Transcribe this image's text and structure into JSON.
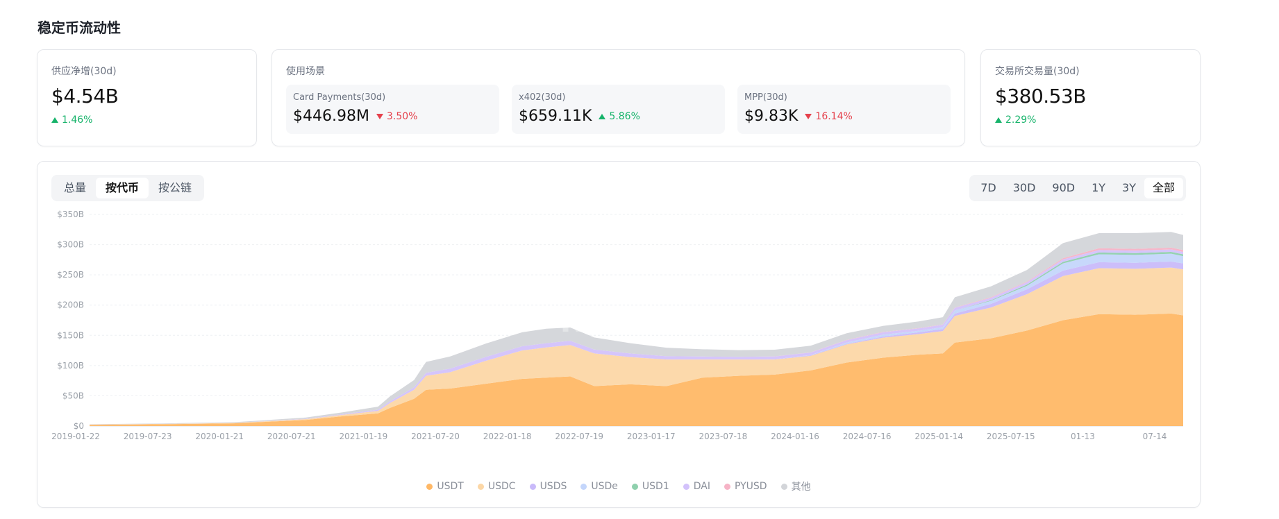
{
  "page": {
    "title": "稳定币流动性"
  },
  "supply_card": {
    "label": "供应净增(30d)",
    "value": "$4.54B",
    "change": "1.46%",
    "direction": "up"
  },
  "usage_card": {
    "label": "使用场景",
    "items": [
      {
        "label": "Card Payments(30d)",
        "value": "$446.98M",
        "change": "3.50%",
        "direction": "down"
      },
      {
        "label": "x402(30d)",
        "value": "$659.11K",
        "change": "5.86%",
        "direction": "up"
      },
      {
        "label": "MPP(30d)",
        "value": "$9.83K",
        "change": "16.14%",
        "direction": "down"
      }
    ]
  },
  "exchange_card": {
    "label": "交易所交易量(30d)",
    "value": "$380.53B",
    "change": "2.29%",
    "direction": "up"
  },
  "view_tabs": [
    "总量",
    "按代币",
    "按公链"
  ],
  "active_view": 1,
  "range_tabs": [
    "7D",
    "30D",
    "90D",
    "1Y",
    "3Y",
    "全部"
  ],
  "active_range": 5,
  "watermark": "ROOTDATA",
  "chart_data": {
    "type": "area",
    "stacked": true,
    "y_ticks": [
      "$0",
      "$50B",
      "$100B",
      "$150B",
      "$200B",
      "$250B",
      "$300B",
      "$350B"
    ],
    "ylim": [
      0,
      350
    ],
    "y_unit": "B USD",
    "x_ticks": [
      "2019-01-22",
      "2019-07-23",
      "2020-01-21",
      "2020-07-21",
      "2021-01-19",
      "2021-07-20",
      "2022-01-18",
      "2022-07-19",
      "2023-01-17",
      "2023-07-18",
      "2024-01-16",
      "2024-07-16",
      "2025-01-14",
      "2025-07-15",
      "01-13",
      "07-14"
    ],
    "grid": true,
    "legend_position": "bottom",
    "x": [
      "2019-01",
      "2019-07",
      "2020-01",
      "2020-07",
      "2020-10",
      "2021-01",
      "2021-02",
      "2021-04",
      "2021-05",
      "2021-07",
      "2021-10",
      "2022-01",
      "2022-03",
      "2022-05",
      "2022-07",
      "2022-10",
      "2023-01",
      "2023-04",
      "2023-07",
      "2023-10",
      "2024-01",
      "2024-04",
      "2024-07",
      "2024-10",
      "2024-12",
      "2025-01",
      "2025-04",
      "2025-07",
      "2025-10",
      "2026-01",
      "2026-04",
      "2026-07",
      "2026-08"
    ],
    "series": [
      {
        "name": "USDT",
        "color": "#ffb866",
        "values": [
          2,
          3,
          4.5,
          10,
          16,
          21,
          30,
          45,
          60,
          62,
          70,
          78,
          80,
          82,
          66,
          69,
          66,
          80,
          83,
          85,
          92,
          105,
          113,
          118,
          120,
          138,
          145,
          158,
          175,
          185,
          184,
          186,
          183
        ]
      },
      {
        "name": "USDC",
        "color": "#fcd7a6",
        "values": [
          0.5,
          0.6,
          0.7,
          1.5,
          2.5,
          4,
          8,
          15,
          23,
          27,
          38,
          47,
          50,
          52,
          54,
          45,
          44,
          30,
          27,
          25,
          24,
          30,
          33,
          34,
          37,
          44,
          51,
          60,
          73,
          76,
          76,
          76,
          76
        ]
      },
      {
        "name": "USDS",
        "color": "#c9bafa",
        "values": [
          0,
          0,
          0,
          0,
          0,
          0,
          0,
          0,
          0,
          0,
          0,
          0,
          0,
          0,
          0,
          0,
          0,
          0,
          0,
          0.5,
          1,
          1,
          2,
          3,
          3.5,
          4,
          6,
          8,
          9,
          10,
          10,
          10,
          10
        ]
      },
      {
        "name": "USDe",
        "color": "#c4d6fb",
        "values": [
          0,
          0,
          0,
          0,
          0,
          0,
          0,
          0,
          0,
          0,
          0,
          0,
          0,
          0,
          0,
          0,
          0,
          0,
          0,
          0,
          0.5,
          2,
          3,
          2.5,
          3,
          5,
          5,
          6,
          12,
          13,
          13,
          13,
          12
        ]
      },
      {
        "name": "USD1",
        "color": "#8fd0ad",
        "values": [
          0,
          0,
          0,
          0,
          0,
          0,
          0,
          0,
          0,
          0,
          0,
          0,
          0,
          0,
          0,
          0,
          0,
          0,
          0,
          0,
          0,
          0,
          0,
          0,
          0,
          0,
          1,
          2,
          2.5,
          3,
          3,
          3,
          3
        ]
      },
      {
        "name": "DAI",
        "color": "#d3c2fb",
        "values": [
          0.05,
          0.1,
          0.1,
          0.5,
          1,
          2,
          3,
          4,
          5,
          6,
          6.5,
          7,
          7,
          7,
          6.5,
          6,
          5.5,
          5,
          4.5,
          4.5,
          4,
          4,
          4,
          4,
          4,
          4.5,
          4,
          4,
          4,
          4,
          4,
          4,
          4
        ]
      },
      {
        "name": "PYUSD",
        "color": "#f6b3c6",
        "values": [
          0,
          0,
          0,
          0,
          0,
          0,
          0,
          0,
          0,
          0,
          0,
          0,
          0,
          0,
          0,
          0,
          0,
          0,
          0,
          0.2,
          0.3,
          0.5,
          0.5,
          0.5,
          0.5,
          0.5,
          1,
          1,
          2,
          3,
          3,
          3,
          3
        ]
      },
      {
        "name": "其他",
        "color": "#d3d5d9",
        "values": [
          0.5,
          0.6,
          1,
          2,
          3,
          5,
          8,
          12,
          18,
          20,
          22,
          23,
          24,
          22,
          20,
          17,
          14,
          12,
          11,
          11,
          11,
          11,
          10,
          11,
          12,
          17,
          18,
          19,
          25,
          25,
          26,
          26,
          25
        ]
      }
    ]
  }
}
